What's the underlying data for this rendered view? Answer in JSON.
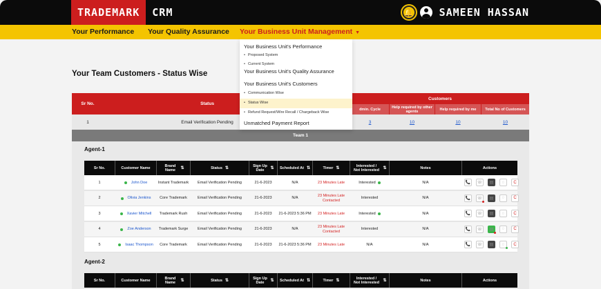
{
  "app": {
    "brand": "TRADEMARK",
    "product": "CRM",
    "user_name": "SAMEEN HASSAN"
  },
  "nav": {
    "items": [
      "Your Performance",
      "Your Quality Assurance",
      "Your Business Unit Management"
    ]
  },
  "dropdown": {
    "section1": "Your Business Unit's Performance",
    "s1_items": [
      "Proposed System",
      "Current System"
    ],
    "section2": "Your Business Unit's Quality Assurance",
    "section3": "Your Business Unit's Customers",
    "s3_items": [
      "Communication Wise",
      "Status Wise",
      "Refund Request/Wire Recall / Chargeback Wise"
    ],
    "section4": "Unmatched Payment Report"
  },
  "page": {
    "title": "Your Team Customers - Status Wise"
  },
  "summary": {
    "head_sr": "Sr No.",
    "head_status": "Status",
    "head_customers": "Customers",
    "sub": [
      "dmin. Cycle",
      "Help required by other agents",
      "Help required by me",
      "Total No of Customers"
    ],
    "row": {
      "sr": "1",
      "status": "Email Verification Pending",
      "v1": "3",
      "v2": "10",
      "v3": "10",
      "v4": "10"
    },
    "team": "Team 1"
  },
  "agent_table_headers": [
    "Sr No.",
    "Customer Name",
    "Brand Name",
    "Status",
    "Sign Up Date",
    "Scheduled At",
    "Timer",
    "Interested / Not Interested",
    "Notes",
    "Actions"
  ],
  "agents": [
    {
      "label": "Agent-1",
      "rows": [
        {
          "sr": "1",
          "name": "John Doe",
          "brand": "Instant Trademark",
          "status": "Email Verification Pending",
          "signup": "21-6-2023",
          "scheduled": "N/A",
          "timer": "23 Minutes Late",
          "interest": "Interested",
          "notes": "N/A"
        },
        {
          "sr": "2",
          "name": "Olivia Jenkins",
          "brand": "Core Trademark",
          "status": "Email Verification Pending",
          "signup": "21-6-2023",
          "scheduled": "N/A",
          "timer": "23 Minutes Late Contacted",
          "interest": "Interested",
          "notes": "N/A"
        },
        {
          "sr": "3",
          "name": "Xavier Mitchell",
          "brand": "Trademark Rush",
          "status": "Email Verification Pending",
          "signup": "21-6-2023",
          "scheduled": "21-6-2023 5:36 PM",
          "timer": "23 Minutes Late",
          "interest": "Interested",
          "notes": "N/A"
        },
        {
          "sr": "4",
          "name": "Zoe Anderson",
          "brand": "Trademark Surge",
          "status": "Email Verification Pending",
          "signup": "21-6-2023",
          "scheduled": "N/A",
          "timer": "23 Minutes Late Contacted",
          "interest": "Interested",
          "notes": "N/A"
        },
        {
          "sr": "5",
          "name": "Isaac Thompson",
          "brand": "Core Trademark",
          "status": "Email Verification Pending",
          "signup": "21-6-2023",
          "scheduled": "21-6-2023 5:36 PM",
          "timer": "23 Minutes Late",
          "interest": "N/A",
          "notes": "N/A"
        }
      ]
    },
    {
      "label": "Agent-2",
      "rows": []
    }
  ],
  "icons": [
    "bell-icon",
    "user-avatar-icon",
    "phone-icon",
    "call-icon",
    "note-icon",
    "whatsapp-icon",
    "refresh-icon"
  ],
  "colors": {
    "brand_red": "#cc1e1e",
    "nav_yellow": "#f4c400",
    "link_blue": "#1a55cc",
    "late_red": "#d42222",
    "status_green": "#3ab54a"
  }
}
